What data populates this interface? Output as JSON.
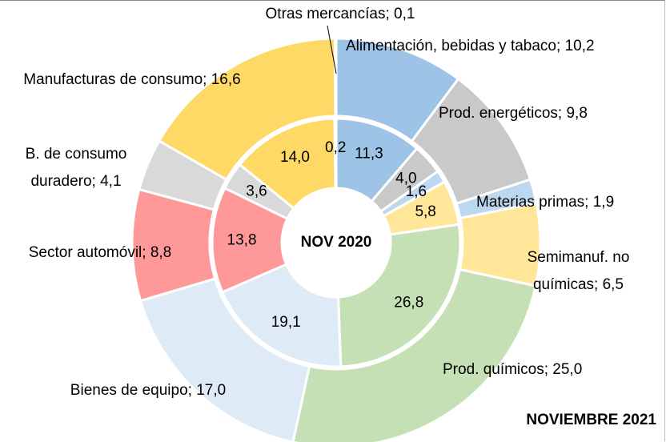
{
  "chart_data": {
    "type": "donut",
    "categories": [
      "Alimentación, bebidas y tabaco",
      "Prod. energéticos",
      "Materias primas",
      "Semimanuf. no químicas",
      "Prod. químicos",
      "Bienes de equipo",
      "Sector automóvil",
      "B. de consumo duradero",
      "Manufacturas de consumo",
      "Otras mercancías"
    ],
    "colors": [
      "#9dc3e6",
      "#c9c9c9",
      "#bdd7ee",
      "#ffe699",
      "#c5e0b4",
      "#deebf7",
      "#ff9999",
      "#d9d9d9",
      "#ffd966",
      "#ffffff"
    ],
    "label_separator": "; ",
    "series": [
      {
        "name": "NOV 2020",
        "values": [
          11.3,
          4.0,
          1.6,
          5.8,
          26.8,
          19.1,
          13.8,
          3.6,
          14.0,
          0.2
        ],
        "value_labels": [
          "11,3",
          "4,0",
          "1,6",
          "5,8",
          "26,8",
          "19,1",
          "13,8",
          "3,6",
          "14,0",
          "0,2"
        ]
      },
      {
        "name": "NOVIEMBRE 2021",
        "values": [
          10.2,
          9.8,
          1.9,
          6.5,
          25.0,
          17.0,
          8.8,
          4.1,
          16.6,
          0.1
        ],
        "value_labels": [
          "10,2",
          "9,8",
          "1,9",
          "6,5",
          "25,0",
          "17,0",
          "8,8",
          "4,1",
          "16,6",
          "0,1"
        ]
      }
    ]
  }
}
